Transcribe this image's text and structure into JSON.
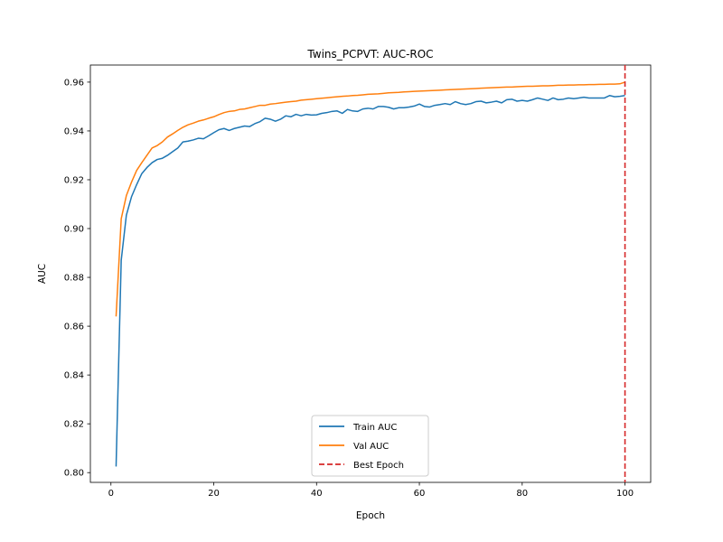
{
  "chart_data": {
    "type": "line",
    "title": "Twins_PCPVT: AUC-ROC",
    "xlabel": "Epoch",
    "ylabel": "AUC",
    "xlim": [
      -4,
      105
    ],
    "ylim": [
      0.796,
      0.967
    ],
    "xticks": [
      0,
      20,
      40,
      60,
      80,
      100
    ],
    "yticks": [
      0.8,
      0.82,
      0.84,
      0.86,
      0.88,
      0.9,
      0.92,
      0.94,
      0.96
    ],
    "grid": false,
    "legend_position": "lower center",
    "x": [
      1,
      2,
      3,
      4,
      5,
      6,
      7,
      8,
      9,
      10,
      11,
      12,
      13,
      14,
      15,
      16,
      17,
      18,
      19,
      20,
      21,
      22,
      23,
      24,
      25,
      26,
      27,
      28,
      29,
      30,
      31,
      32,
      33,
      34,
      35,
      36,
      37,
      38,
      39,
      40,
      41,
      42,
      43,
      44,
      45,
      46,
      47,
      48,
      49,
      50,
      51,
      52,
      53,
      54,
      55,
      56,
      57,
      58,
      59,
      60,
      61,
      62,
      63,
      64,
      65,
      66,
      67,
      68,
      69,
      70,
      71,
      72,
      73,
      74,
      75,
      76,
      77,
      78,
      79,
      80,
      81,
      82,
      83,
      84,
      85,
      86,
      87,
      88,
      89,
      90,
      91,
      92,
      93,
      94,
      95,
      96,
      97,
      98,
      99,
      100
    ],
    "series": [
      {
        "name": "Train AUC",
        "color": "#1f77b4",
        "style": "solid",
        "values": [
          0.8025,
          0.887,
          0.9055,
          0.913,
          0.918,
          0.9225,
          0.925,
          0.927,
          0.9283,
          0.9288,
          0.93,
          0.9315,
          0.933,
          0.9355,
          0.9358,
          0.9363,
          0.937,
          0.9368,
          0.938,
          0.9393,
          0.9405,
          0.941,
          0.9402,
          0.941,
          0.9415,
          0.942,
          0.9418,
          0.943,
          0.9438,
          0.9452,
          0.9448,
          0.944,
          0.9448,
          0.9462,
          0.9458,
          0.9468,
          0.9462,
          0.9468,
          0.9465,
          0.9466,
          0.9472,
          0.9475,
          0.948,
          0.9482,
          0.9472,
          0.9488,
          0.9482,
          0.948,
          0.949,
          0.9493,
          0.949,
          0.95,
          0.95,
          0.9497,
          0.949,
          0.9495,
          0.9495,
          0.9498,
          0.9502,
          0.951,
          0.95,
          0.9498,
          0.9505,
          0.9508,
          0.9512,
          0.9508,
          0.952,
          0.9512,
          0.9508,
          0.9512,
          0.952,
          0.9522,
          0.9515,
          0.9518,
          0.9522,
          0.9515,
          0.9528,
          0.953,
          0.9522,
          0.9525,
          0.9522,
          0.9528,
          0.9535,
          0.953,
          0.9525,
          0.9535,
          0.9528,
          0.953,
          0.9535,
          0.9532,
          0.9535,
          0.9538,
          0.9535,
          0.9535,
          0.9535,
          0.9535,
          0.9545,
          0.954,
          0.9542,
          0.9545
        ]
      },
      {
        "name": "Val AUC",
        "color": "#ff7f0e",
        "style": "solid",
        "values": [
          0.864,
          0.904,
          0.9135,
          0.919,
          0.9238,
          0.927,
          0.93,
          0.933,
          0.934,
          0.9355,
          0.9375,
          0.9388,
          0.9402,
          0.9415,
          0.9425,
          0.9432,
          0.944,
          0.9445,
          0.9452,
          0.9458,
          0.9467,
          0.9475,
          0.948,
          0.9482,
          0.9488,
          0.949,
          0.9495,
          0.95,
          0.9505,
          0.9505,
          0.951,
          0.9512,
          0.9515,
          0.9518,
          0.952,
          0.9522,
          0.9526,
          0.9528,
          0.953,
          0.9532,
          0.9534,
          0.9536,
          0.9538,
          0.954,
          0.9542,
          0.9543,
          0.9545,
          0.9546,
          0.9548,
          0.955,
          0.9551,
          0.9552,
          0.9554,
          0.9556,
          0.9557,
          0.9558,
          0.956,
          0.9561,
          0.9562,
          0.9563,
          0.9564,
          0.9565,
          0.9566,
          0.9567,
          0.9568,
          0.9569,
          0.957,
          0.9571,
          0.9572,
          0.9573,
          0.9574,
          0.9575,
          0.9576,
          0.9577,
          0.9578,
          0.9579,
          0.958,
          0.958,
          0.9581,
          0.9582,
          0.9583,
          0.9583,
          0.9584,
          0.9585,
          0.9585,
          0.9586,
          0.9587,
          0.9587,
          0.9588,
          0.9588,
          0.9589,
          0.9589,
          0.959,
          0.959,
          0.9591,
          0.9591,
          0.9592,
          0.9592,
          0.9593,
          0.96
        ]
      }
    ],
    "vlines": [
      {
        "name": "Best Epoch",
        "x": 100,
        "color": "#d62728",
        "style": "dashed"
      }
    ],
    "legend": [
      {
        "label": "Train AUC",
        "color": "#1f77b4",
        "style": "solid"
      },
      {
        "label": "Val AUC",
        "color": "#ff7f0e",
        "style": "solid"
      },
      {
        "label": "Best Epoch",
        "color": "#d62728",
        "style": "dashed"
      }
    ]
  }
}
